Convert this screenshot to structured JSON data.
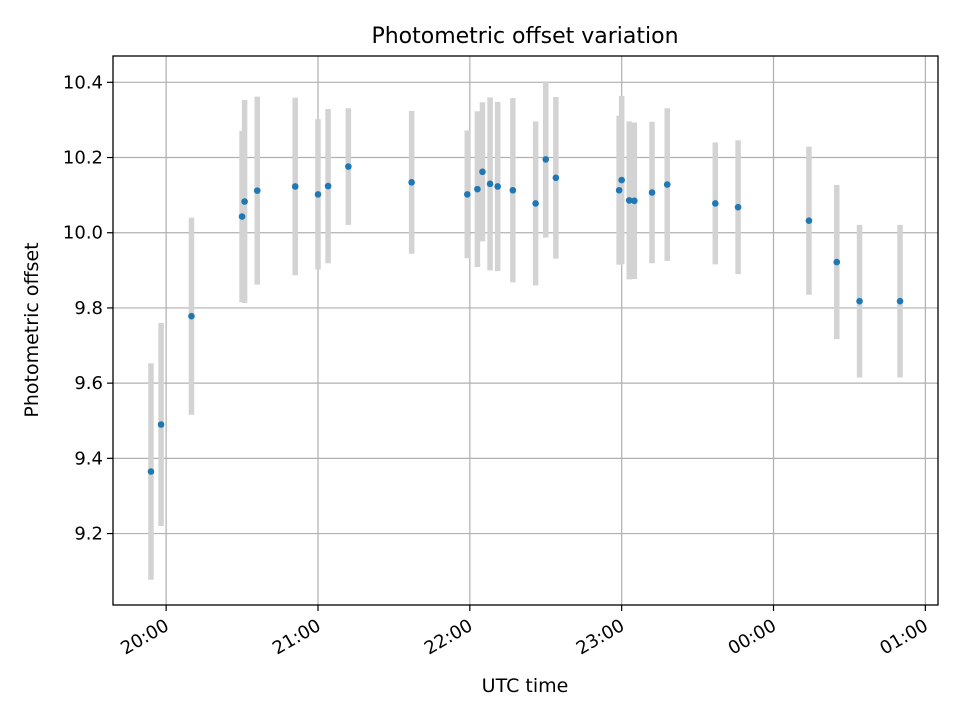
{
  "chart_data": {
    "type": "scatter",
    "title": "Photometric offset variation",
    "xlabel": "UTC time",
    "ylabel": "Photometric offset",
    "x_tick_labels": [
      "20:00",
      "21:00",
      "22:00",
      "23:00",
      "00:00",
      "01:00"
    ],
    "y_tick_labels": [
      "9.2",
      "9.4",
      "9.6",
      "9.8",
      "10.0",
      "10.2",
      "10.4"
    ],
    "y_ticks": [
      9.2,
      9.4,
      9.6,
      9.8,
      10.0,
      10.2,
      10.4
    ],
    "xlim": [
      "19:39",
      "25:05"
    ],
    "ylim": [
      9.01,
      10.47
    ],
    "grid": true,
    "colors": {
      "marker": "#1f77b4",
      "errorbar": "#d3d3d3",
      "grid": "#b0b0b0"
    },
    "series": [
      {
        "points": [
          {
            "x": "19:54",
            "y": 9.365,
            "err": 0.288
          },
          {
            "x": "19:58",
            "y": 9.49,
            "err": 0.27
          },
          {
            "x": "20:10",
            "y": 9.778,
            "err": 0.262
          },
          {
            "x": "20:30",
            "y": 10.043,
            "err": 0.228
          },
          {
            "x": "20:31",
            "y": 10.083,
            "err": 0.27
          },
          {
            "x": "20:36",
            "y": 10.112,
            "err": 0.25
          },
          {
            "x": "20:51",
            "y": 10.123,
            "err": 0.236
          },
          {
            "x": "21:00",
            "y": 10.102,
            "err": 0.2
          },
          {
            "x": "21:04",
            "y": 10.124,
            "err": 0.205
          },
          {
            "x": "21:12",
            "y": 10.176,
            "err": 0.155
          },
          {
            "x": "21:37",
            "y": 10.134,
            "err": 0.19
          },
          {
            "x": "21:59",
            "y": 10.102,
            "err": 0.17
          },
          {
            "x": "22:03",
            "y": 10.116,
            "err": 0.207
          },
          {
            "x": "22:05",
            "y": 10.162,
            "err": 0.185
          },
          {
            "x": "22:08",
            "y": 10.13,
            "err": 0.23
          },
          {
            "x": "22:11",
            "y": 10.123,
            "err": 0.225
          },
          {
            "x": "22:17",
            "y": 10.113,
            "err": 0.245
          },
          {
            "x": "22:26",
            "y": 10.078,
            "err": 0.218
          },
          {
            "x": "22:30",
            "y": 10.195,
            "err": 0.208
          },
          {
            "x": "22:34",
            "y": 10.146,
            "err": 0.215
          },
          {
            "x": "22:59",
            "y": 10.113,
            "err": 0.198
          },
          {
            "x": "23:00",
            "y": 10.14,
            "err": 0.224
          },
          {
            "x": "23:03",
            "y": 10.086,
            "err": 0.21
          },
          {
            "x": "23:05",
            "y": 10.085,
            "err": 0.208
          },
          {
            "x": "23:12",
            "y": 10.107,
            "err": 0.188
          },
          {
            "x": "23:18",
            "y": 10.128,
            "err": 0.203
          },
          {
            "x": "23:37",
            "y": 10.078,
            "err": 0.162
          },
          {
            "x": "23:46",
            "y": 10.068,
            "err": 0.178
          },
          {
            "x": "24:14",
            "y": 10.032,
            "err": 0.197
          },
          {
            "x": "24:25",
            "y": 9.922,
            "err": 0.205
          },
          {
            "x": "24:34",
            "y": 9.818,
            "err": 0.203
          },
          {
            "x": "24:50",
            "y": 9.818,
            "err": 0.203
          }
        ]
      }
    ]
  }
}
